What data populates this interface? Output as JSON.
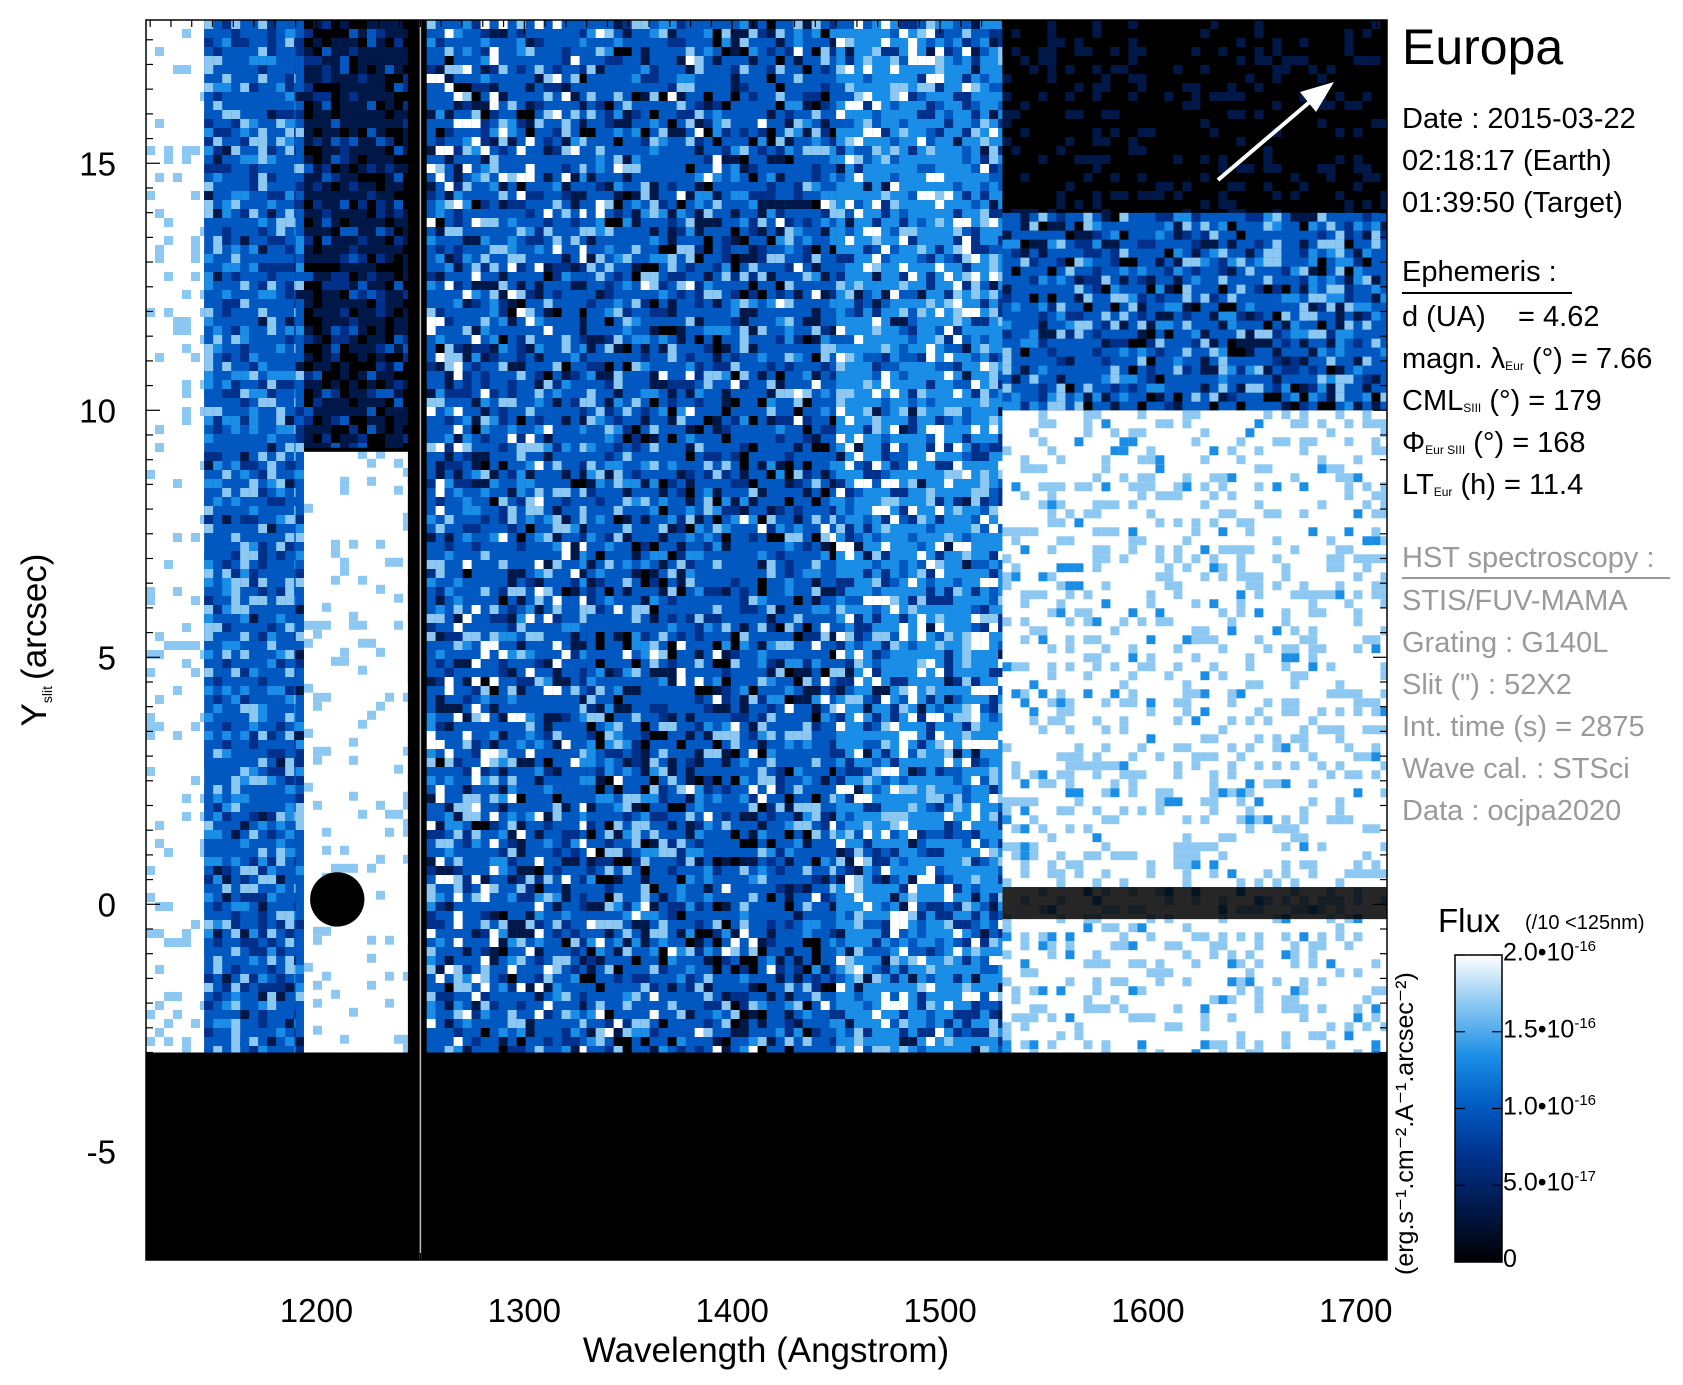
{
  "chart_data": {
    "type": "heatmap",
    "title": "",
    "xlabel": "Wavelength (Angstrom)",
    "ylabel_main": "Y",
    "ylabel_sub": "slit",
    "ylabel_unit": "(arcsec)",
    "xlim": [
      1118,
      1715
    ],
    "ylim": [
      -7.2,
      17.9
    ],
    "x_ticks": [
      1200,
      1300,
      1400,
      1500,
      1600,
      1700
    ],
    "y_ticks": [
      -5,
      0,
      5,
      10,
      15
    ],
    "x_minor_step": 10,
    "y_minor_step": 0.5,
    "regions": [
      {
        "x": [
          1118,
          1146
        ],
        "y": [
          -3,
          17.9
        ],
        "level": 1.0,
        "noise": 0.15
      },
      {
        "x": [
          1146,
          1190
        ],
        "y": [
          -3,
          17.9
        ],
        "level": 0.55,
        "noise": 0.35
      },
      {
        "x": [
          1190,
          1194
        ],
        "y": [
          -3,
          17.9
        ],
        "level": 0.5,
        "noise": 0.35
      },
      {
        "x": [
          1194,
          1244
        ],
        "y": [
          -3,
          9.2
        ],
        "level": 1.0,
        "noise": 0.15
      },
      {
        "x": [
          1194,
          1244
        ],
        "y": [
          9.2,
          17.9
        ],
        "level": 0.15,
        "noise": 0.35
      },
      {
        "x": [
          1253,
          1330
        ],
        "y": [
          -3,
          17.9
        ],
        "level": 0.55,
        "noise": 0.5
      },
      {
        "x": [
          1330,
          1450
        ],
        "y": [
          -3,
          17.9
        ],
        "level": 0.45,
        "noise": 0.5
      },
      {
        "x": [
          1450,
          1530
        ],
        "y": [
          -3,
          17.9
        ],
        "level": 0.65,
        "noise": 0.45
      },
      {
        "x": [
          1530,
          1715
        ],
        "y": [
          -3,
          10
        ],
        "level": 0.92,
        "noise": 0.2
      },
      {
        "x": [
          1530,
          1715
        ],
        "y": [
          10,
          14
        ],
        "level": 0.45,
        "noise": 0.45
      },
      {
        "x": [
          1530,
          1715
        ],
        "y": [
          14,
          17.9
        ],
        "level": 0.05,
        "noise": 0.15
      }
    ],
    "features": {
      "europa_disk_center": [
        1210,
        0.1
      ],
      "europa_disk_radius_arcsec": 0.55,
      "dark_band_y": [
        -0.3,
        0.35
      ],
      "dark_band_x": [
        1530,
        1715
      ],
      "dark_line_y": 9.2,
      "occulted_below_y": -3.1,
      "gap_x": [
        1244,
        1253
      ],
      "gray_line_x": 1250
    },
    "colorbar": {
      "title": "Flux",
      "note": "(/10 <125nm)",
      "unit": "(erg.s⁻¹.cm⁻².A⁻¹.arcsec⁻²)",
      "min": 0,
      "max": 2e-16,
      "tick_values": [
        0,
        5e-17,
        1e-16,
        1.5e-16,
        2e-16
      ],
      "tick_labels": [
        {
          "mant": "0",
          "exp": ""
        },
        {
          "mant": "5.0•10",
          "exp": "-17"
        },
        {
          "mant": "1.0•10",
          "exp": "-16"
        },
        {
          "mant": "1.5•10",
          "exp": "-16"
        },
        {
          "mant": "2.0•10",
          "exp": "-16"
        }
      ],
      "colors": [
        "#000000",
        "#001848",
        "#00308a",
        "#0058c0",
        "#1a8ee6",
        "#8cc8f2",
        "#ffffff"
      ]
    }
  },
  "panel": {
    "target": "Europa",
    "date_line": "Date : 2015-03-22",
    "earth_time": "02:18:17 (Earth)",
    "target_time": "01:39:50 (Target)",
    "ephemeris_title": "Ephemeris :",
    "d_label": "d (UA)",
    "d_value": "= 4.62",
    "magn_prefix": "magn. λ",
    "magn_sub": "Eur",
    "magn_rest": "(°)  = 7.66",
    "cml_prefix": "CML",
    "cml_sub": "SIII",
    "cml_rest": "(°) = 179",
    "phi_prefix": "Φ",
    "phi_sub": "Eur SIII",
    "phi_rest": "(°) = 168",
    "lt_prefix": "LT",
    "lt_sub": "Eur",
    "lt_rest": "(h) = 11.4",
    "hst_title": "HST spectroscopy :",
    "instrument": "STIS/FUV-MAMA",
    "grating": "Grating : G140L",
    "slit": "Slit (\") : 52X2",
    "int_time": "Int. time (s) = 2875",
    "wave_cal": "Wave cal. : STSci",
    "dataset": "Data : ocjpa2020"
  },
  "colors": {
    "background": "#ffffff",
    "text": "#000000",
    "gray_text": "#9a9a9a"
  },
  "icons": {
    "direction_arrow": "arrow-up-right-icon"
  }
}
